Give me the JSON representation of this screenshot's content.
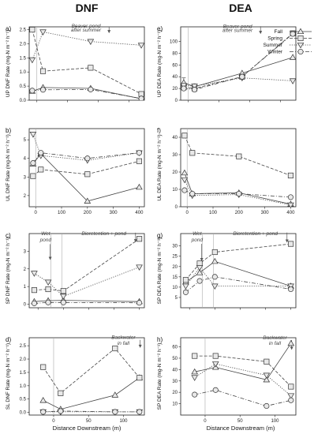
{
  "titles": {
    "left": "DNF",
    "right": "DEA"
  },
  "xlabel": "Distance Downstream (m)",
  "legend": [
    {
      "label": "Fall",
      "marker": "triangle-up",
      "dash": ""
    },
    {
      "label": "Spring",
      "marker": "square",
      "dash": "4,2"
    },
    {
      "label": "Summer",
      "marker": "triangle-down",
      "dash": "1.2,1.6"
    },
    {
      "label": "Winter",
      "marker": "circle",
      "dash": "5,2,1,2"
    }
  ],
  "chart_data": [
    {
      "type": "line",
      "panel": "a)",
      "ylabel": "UP DNF Rate (mg-N m⁻² h⁻¹)",
      "xlim": [
        -25,
        350
      ],
      "ylim": [
        0,
        2.6
      ],
      "xticks": [
        0,
        100,
        200,
        300
      ],
      "yticks": [
        0,
        0.5,
        1.0,
        1.5,
        2.0,
        2.5
      ],
      "showXTickLabels": false,
      "vlines": [
        {
          "x": 0
        }
      ],
      "annotations": [
        {
          "text": "Beaver pond",
          "x": 160,
          "y": 2.63
        },
        {
          "text": "after summer",
          "x": 160,
          "y": 2.49
        }
      ],
      "arrows": [
        {
          "x": 235,
          "y1": 2.6,
          "y2": 2.4
        }
      ],
      "series": [
        {
          "name": "Fall",
          "x": [
            -15,
            20,
            175,
            340
          ],
          "y": [
            0.32,
            0.45,
            0.42,
            0.05
          ]
        },
        {
          "name": "Spring",
          "x": [
            -15,
            20,
            175,
            340
          ],
          "y": [
            2.5,
            1.03,
            1.15,
            0.22
          ]
        },
        {
          "name": "Summer",
          "x": [
            -15,
            20,
            175,
            340
          ],
          "y": [
            1.43,
            2.42,
            2.08,
            1.95
          ]
        },
        {
          "name": "Winter",
          "x": [
            -15,
            20,
            175,
            340
          ],
          "y": [
            0.34,
            0.37,
            0.38,
            0.06
          ]
        }
      ]
    },
    {
      "type": "line",
      "panel": "e)",
      "ylabel": "UP DEA Rate (mg-N m⁻² h⁻¹)",
      "xlim": [
        -25,
        350
      ],
      "ylim": [
        0,
        125
      ],
      "xticks": [
        0,
        100,
        200,
        300
      ],
      "yticks": [
        0,
        20,
        40,
        60,
        80,
        100
      ],
      "showXTickLabels": false,
      "vlines": [
        {
          "x": 0
        }
      ],
      "annotations": [
        {
          "text": "Beaver pond",
          "x": 160,
          "y": 126
        },
        {
          "text": "after summer",
          "x": 160,
          "y": 119
        }
      ],
      "arrows": [
        {
          "x": 235,
          "y1": 126,
          "y2": 114
        }
      ],
      "errorbars": [
        {
          "x": -15,
          "y": 28,
          "e": 10
        },
        {
          "x": 20,
          "y": 22,
          "e": 6
        }
      ],
      "series": [
        {
          "name": "Fall",
          "x": [
            -15,
            20,
            175,
            340
          ],
          "y": [
            30,
            23,
            46,
            73
          ]
        },
        {
          "name": "Spring",
          "x": [
            -15,
            20,
            175,
            340
          ],
          "y": [
            22,
            20,
            40,
            114
          ]
        },
        {
          "name": "Summer",
          "x": [
            -15,
            20,
            175,
            340
          ],
          "y": [
            25,
            24,
            38,
            33
          ]
        },
        {
          "name": "Winter",
          "x": [
            -15,
            20,
            175,
            340
          ],
          "y": [
            20,
            18,
            40,
            113
          ]
        }
      ]
    },
    {
      "type": "line",
      "panel": "b)",
      "ylabel": "UL DNF Rate (mg-N m⁻² h⁻¹)",
      "xlim": [
        -25,
        420
      ],
      "ylim": [
        1.4,
        5.6
      ],
      "xticks": [
        0,
        100,
        200,
        300,
        400
      ],
      "yticks": [
        2,
        3,
        4,
        5
      ],
      "showXTickLabels": true,
      "vlines": [
        {
          "x": 0
        }
      ],
      "series": [
        {
          "name": "Fall",
          "x": [
            -10,
            20,
            200,
            400
          ],
          "y": [
            3.7,
            4.25,
            1.7,
            2.45
          ]
        },
        {
          "name": "Spring",
          "x": [
            -10,
            20,
            200,
            400
          ],
          "y": [
            3.05,
            3.4,
            3.15,
            3.85
          ]
        },
        {
          "name": "Summer",
          "x": [
            -10,
            20,
            200,
            400
          ],
          "y": [
            5.3,
            4.15,
            3.9,
            4.3
          ]
        },
        {
          "name": "Winter",
          "x": [
            -10,
            20,
            200,
            400
          ],
          "y": [
            3.75,
            4.3,
            4.0,
            4.3
          ]
        }
      ]
    },
    {
      "type": "line",
      "panel": "f)",
      "ylabel": "UL DEA Rate (mg-N m⁻² h⁻¹)",
      "xlim": [
        -25,
        420
      ],
      "ylim": [
        0,
        45
      ],
      "xticks": [
        0,
        100,
        200,
        300,
        400
      ],
      "yticks": [
        0,
        10,
        20,
        30,
        40
      ],
      "showXTickLabels": true,
      "vlines": [
        {
          "x": 0
        }
      ],
      "series": [
        {
          "name": "Fall",
          "x": [
            -10,
            20,
            200,
            400
          ],
          "y": [
            19.5,
            7.5,
            8.0,
            1.5
          ]
        },
        {
          "name": "Spring",
          "x": [
            -10,
            20,
            200,
            400
          ],
          "y": [
            41,
            31,
            29,
            18
          ]
        },
        {
          "name": "Summer",
          "x": [
            -10,
            20,
            200,
            400
          ],
          "y": [
            15.5,
            6.5,
            7.0,
            1.0
          ]
        },
        {
          "name": "Winter",
          "x": [
            -10,
            20,
            200,
            400
          ],
          "y": [
            9.5,
            7.5,
            7.5,
            5.5
          ]
        }
      ]
    },
    {
      "type": "line",
      "panel": "c)",
      "ylabel": "SP DNF Rate (mg-N m⁻² h⁻¹)",
      "xlim": [
        -35,
        420
      ],
      "ylim": [
        -0.2,
        4.0
      ],
      "xticks": [
        0,
        100,
        200,
        300,
        400
      ],
      "yticks": [
        0,
        1,
        2,
        3
      ],
      "showXTickLabels": false,
      "vlines": [
        {
          "x": 50
        },
        {
          "x": 95
        }
      ],
      "annotations": [
        {
          "text": "Wet",
          "x": 30,
          "y": 4.0
        },
        {
          "text": "pond",
          "x": 30,
          "y": 3.65
        },
        {
          "text": "Bioretention + pond",
          "x": 260,
          "y": 4.0
        }
      ],
      "arrows": [
        {
          "x": 48,
          "y1": 3.4,
          "y2": 2.55
        },
        {
          "x": 385,
          "y1": 4.05,
          "y2": 3.55
        }
      ],
      "series": [
        {
          "name": "Fall",
          "x": [
            -15,
            40,
            100,
            400
          ],
          "y": [
            0.15,
            0.2,
            0.22,
            0.15
          ]
        },
        {
          "name": "Spring",
          "x": [
            -15,
            40,
            100,
            400
          ],
          "y": [
            0.8,
            0.85,
            0.75,
            3.7
          ]
        },
        {
          "name": "Summer",
          "x": [
            -15,
            40,
            100,
            400
          ],
          "y": [
            1.75,
            1.25,
            0.45,
            2.1
          ]
        },
        {
          "name": "Winter",
          "x": [
            -15,
            40,
            100,
            400
          ],
          "y": [
            0.05,
            0.1,
            0.1,
            0.08
          ]
        }
      ]
    },
    {
      "type": "line",
      "panel": "g)",
      "ylabel": "SP DEA Rate (mg-N m⁻² h⁻¹)",
      "xlim": [
        -35,
        420
      ],
      "ylim": [
        0,
        36
      ],
      "xticks": [
        0,
        100,
        200,
        300,
        400
      ],
      "yticks": [
        5,
        10,
        15,
        20,
        25,
        30
      ],
      "showXTickLabels": false,
      "vlines": [
        {
          "x": 50
        },
        {
          "x": 95
        }
      ],
      "annotations": [
        {
          "text": "Wet",
          "x": 30,
          "y": 36
        },
        {
          "text": "pond",
          "x": 30,
          "y": 33
        },
        {
          "text": "Bioretention + pond",
          "x": 260,
          "y": 36
        }
      ],
      "arrows": [
        {
          "x": 48,
          "y1": 31,
          "y2": 23
        },
        {
          "x": 385,
          "y1": 36.5,
          "y2": 32
        }
      ],
      "series": [
        {
          "name": "Fall",
          "x": [
            -15,
            40,
            100,
            400
          ],
          "y": [
            12.5,
            17.0,
            22.5,
            10.5
          ]
        },
        {
          "name": "Spring",
          "x": [
            -15,
            40,
            100,
            400
          ],
          "y": [
            13.5,
            21.5,
            27.0,
            31.0
          ]
        },
        {
          "name": "Summer",
          "x": [
            -15,
            40,
            100,
            400
          ],
          "y": [
            10.5,
            19.5,
            10.5,
            10.5
          ]
        },
        {
          "name": "Winter",
          "x": [
            -15,
            40,
            100,
            400
          ],
          "y": [
            7.5,
            13.0,
            15.0,
            9.0
          ]
        }
      ]
    },
    {
      "type": "line",
      "panel": "d)",
      "ylabel": "SL DNF Rate (mg-N m⁻² h⁻¹)",
      "xlim": [
        -35,
        130
      ],
      "ylim": [
        -0.1,
        2.8
      ],
      "xticks": [
        0,
        50,
        100
      ],
      "yticks": [
        0,
        0.5,
        1.0,
        1.5,
        2.0,
        2.5
      ],
      "showXTickLabels": true,
      "vlines": [
        {
          "x": 0
        }
      ],
      "annotations": [
        {
          "text": "Backwater",
          "x": 100,
          "y": 2.82
        },
        {
          "text": "in fall",
          "x": 100,
          "y": 2.6
        }
      ],
      "arrows": [
        {
          "x": 124,
          "y1": 2.72,
          "y2": 2.45
        }
      ],
      "series": [
        {
          "name": "Fall",
          "x": [
            -15,
            10,
            88,
            123
          ],
          "y": [
            0.45,
            0.12,
            0.65,
            1.3
          ]
        },
        {
          "name": "Spring",
          "x": [
            -15,
            10,
            88,
            123
          ],
          "y": [
            1.7,
            0.72,
            2.4,
            1.3
          ]
        },
        {
          "name": "Summer",
          "x": [
            -15,
            10,
            88,
            123
          ],
          "y": [
            0.02,
            0.02,
            0.02,
            0.02
          ]
        },
        {
          "name": "Winter",
          "x": [
            -15,
            10,
            88,
            123
          ],
          "y": [
            0.02,
            0.05,
            0.02,
            0.02
          ]
        }
      ]
    },
    {
      "type": "line",
      "panel": "h)",
      "ylabel": "SP DEA Rate (mg-N m⁻² h⁻¹)",
      "xlim": [
        -35,
        130
      ],
      "ylim": [
        0,
        68
      ],
      "xticks": [
        0,
        50,
        100
      ],
      "yticks": [
        10,
        20,
        30,
        40,
        50,
        60
      ],
      "showXTickLabels": true,
      "vlines": [
        {
          "x": 0
        }
      ],
      "annotations": [
        {
          "text": "Backwater",
          "x": 100,
          "y": 68
        },
        {
          "text": "in fall",
          "x": 100,
          "y": 63
        }
      ],
      "arrows": [
        {
          "x": 124,
          "y1": 66,
          "y2": 58
        }
      ],
      "series": [
        {
          "name": "Fall",
          "x": [
            -15,
            15,
            88,
            123
          ],
          "y": [
            38,
            42,
            31,
            63
          ]
        },
        {
          "name": "Spring",
          "x": [
            -15,
            15,
            88,
            123
          ],
          "y": [
            52,
            52,
            47,
            25
          ]
        },
        {
          "name": "Summer",
          "x": [
            -15,
            15,
            88,
            123
          ],
          "y": [
            33,
            45,
            35,
            17
          ]
        },
        {
          "name": "Winter",
          "x": [
            -15,
            15,
            88,
            123
          ],
          "y": [
            18,
            22,
            8,
            13
          ]
        }
      ]
    }
  ]
}
